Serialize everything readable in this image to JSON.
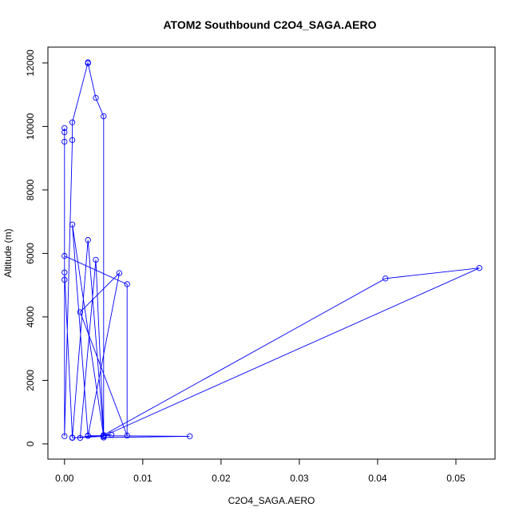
{
  "chart_data": {
    "type": "line",
    "title": "ATOM2 Southbound C2O4_SAGA.AERO",
    "xlabel": "C2O4_SAGA.AERO",
    "ylabel": "Altitude (m)",
    "xlim": [
      -0.00212,
      0.055
    ],
    "ylim": [
      -480,
      12500
    ],
    "xticks": [
      0.0,
      0.01,
      0.02,
      0.03,
      0.04,
      0.05
    ],
    "xtick_labels": [
      "0.00",
      "0.01",
      "0.02",
      "0.03",
      "0.04",
      "0.05"
    ],
    "yticks": [
      0,
      2000,
      4000,
      6000,
      8000,
      10000,
      12000
    ],
    "ytick_labels": [
      "0",
      "2000",
      "4000",
      "6000",
      "8000",
      "10000",
      "12000"
    ],
    "grid": false,
    "line_style": "lines with open circle markers",
    "color": "#0000ff",
    "series": [
      {
        "x": [
          0.0,
          0.0,
          0.0,
          0.0,
          0.001,
          0.001,
          0.003,
          0.003,
          0.004,
          0.005,
          0.005,
          0.005,
          0.053,
          0.041,
          0.005,
          0.003,
          0.001,
          0.0,
          0.0,
          0.0,
          0.008,
          0.008,
          0.002,
          0.007,
          0.003,
          0.002,
          0.004,
          0.005,
          0.016,
          0.003,
          0.001,
          0.005,
          0.001,
          0.006
        ],
        "y": [
          9950,
          9820,
          9520,
          240,
          9570,
          10130,
          12020,
          11990,
          10900,
          10320,
          200,
          250,
          5540,
          5210,
          280,
          6420,
          200,
          5400,
          5170,
          5920,
          5030,
          260,
          4150,
          5380,
          250,
          190,
          5800,
          200,
          240,
          260,
          6910,
          240,
          190,
          290
        ]
      }
    ]
  }
}
